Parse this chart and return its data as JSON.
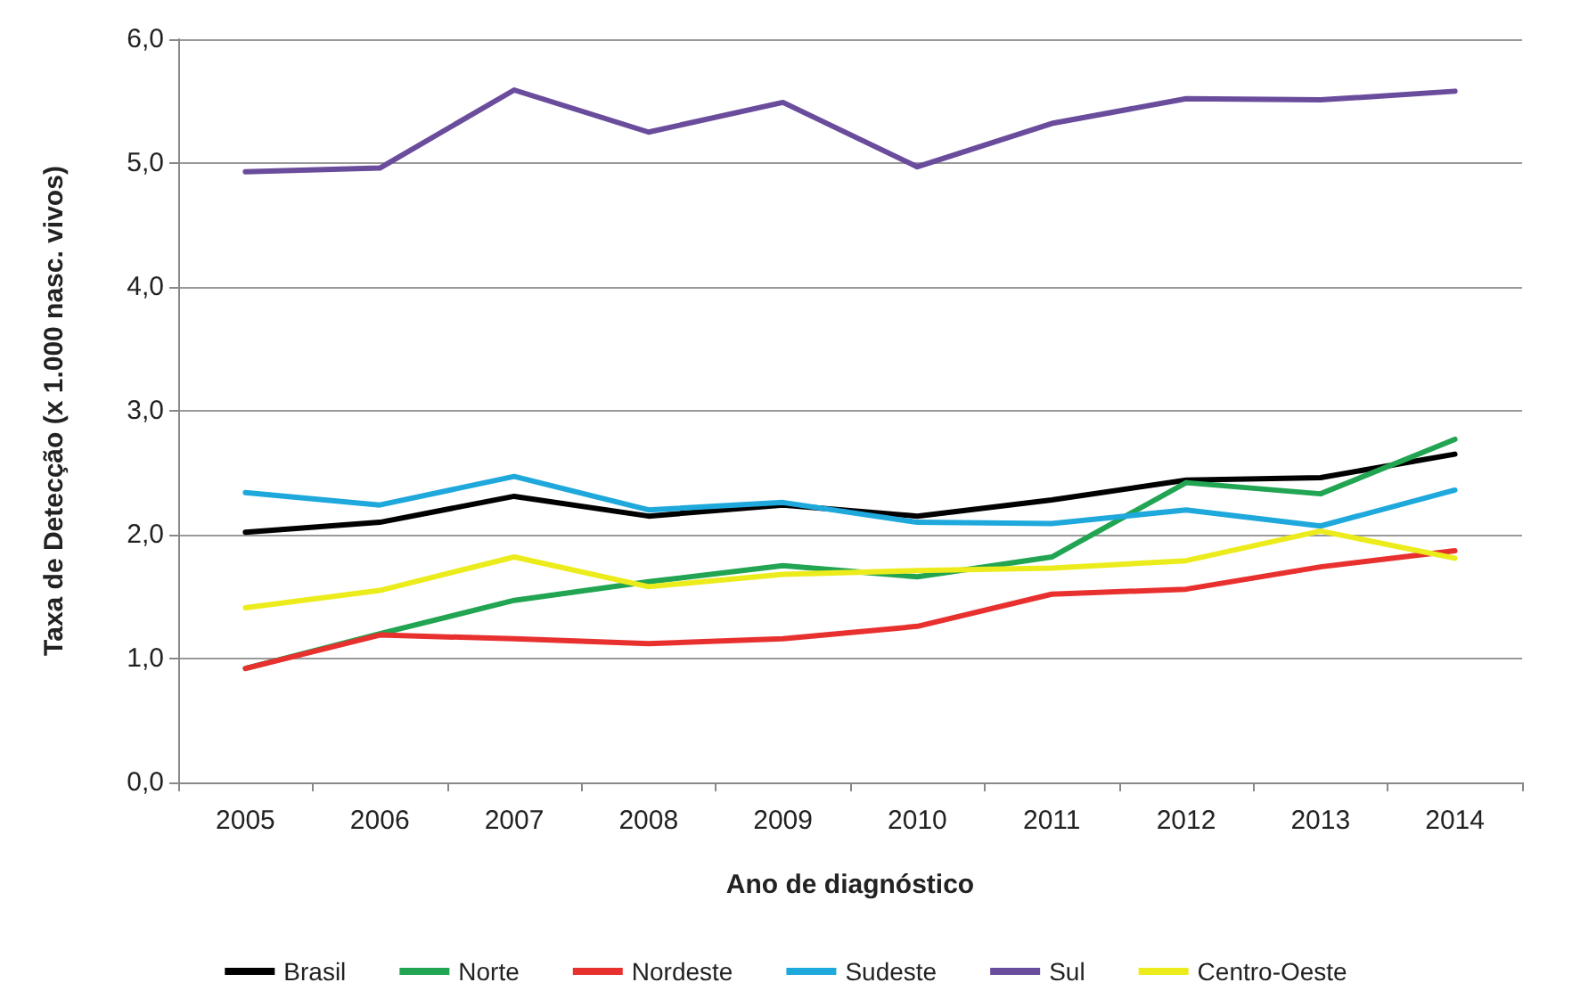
{
  "chart_data": {
    "type": "line",
    "xlabel": "Ano de diagnóstico",
    "ylabel": "Taxa de Detecção (x 1.000 nasc. vivos)",
    "categories": [
      "2005",
      "2006",
      "2007",
      "2008",
      "2009",
      "2010",
      "2011",
      "2012",
      "2013",
      "2014"
    ],
    "series": [
      {
        "name": "Brasil",
        "color": "#000000",
        "values": [
          2.02,
          2.1,
          2.31,
          2.15,
          2.24,
          2.15,
          2.28,
          2.44,
          2.46,
          2.65
        ]
      },
      {
        "name": "Norte",
        "color": "#22a552",
        "values": [
          0.92,
          1.2,
          1.47,
          1.62,
          1.75,
          1.66,
          1.82,
          2.42,
          2.33,
          2.77
        ]
      },
      {
        "name": "Nordeste",
        "color": "#e8302e",
        "values": [
          0.92,
          1.19,
          1.16,
          1.12,
          1.16,
          1.26,
          1.52,
          1.56,
          1.74,
          1.87
        ]
      },
      {
        "name": "Sudeste",
        "color": "#1ea8dc",
        "values": [
          2.34,
          2.24,
          2.47,
          2.2,
          2.26,
          2.1,
          2.09,
          2.2,
          2.07,
          2.36
        ]
      },
      {
        "name": "Sul",
        "color": "#6a4c9c",
        "values": [
          4.93,
          4.96,
          5.59,
          5.25,
          5.49,
          4.97,
          5.32,
          5.52,
          5.51,
          5.58
        ]
      },
      {
        "name": "Centro-Oeste",
        "color": "#ecec1c",
        "values": [
          1.41,
          1.55,
          1.82,
          1.58,
          1.68,
          1.71,
          1.73,
          1.79,
          2.03,
          1.81
        ]
      }
    ],
    "ylim": [
      0,
      6
    ],
    "yticks": [
      {
        "value": 0,
        "label": "0,0"
      },
      {
        "value": 1,
        "label": "1,0"
      },
      {
        "value": 2,
        "label": "2,0"
      },
      {
        "value": 3,
        "label": "3,0"
      },
      {
        "value": 4,
        "label": "4,0"
      },
      {
        "value": 5,
        "label": "5,0"
      },
      {
        "value": 6,
        "label": "6,0"
      }
    ],
    "grid": "y",
    "legend": "bottom",
    "marker": "none",
    "line_style": "solid"
  }
}
